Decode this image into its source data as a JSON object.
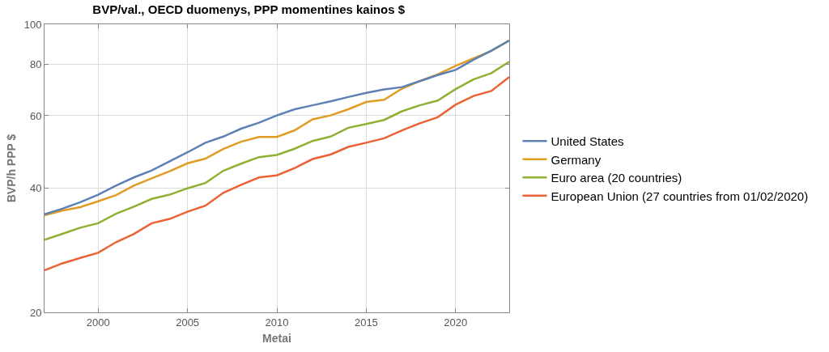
{
  "chart_data": {
    "type": "line",
    "title": "BVP/val., OECD duomenys, PPP momentines kainos $",
    "xlabel": "Metai",
    "ylabel": "BVP/h PPP $",
    "x": [
      1997,
      1998,
      1999,
      2000,
      2001,
      2002,
      2003,
      2004,
      2005,
      2006,
      2007,
      2008,
      2009,
      2010,
      2011,
      2012,
      2013,
      2014,
      2015,
      2016,
      2017,
      2018,
      2019,
      2020,
      2021,
      2022,
      2023
    ],
    "series": [
      {
        "name": "United States",
        "color": "#5e81b5",
        "values": [
          34.6,
          35.7,
          37.0,
          38.6,
          40.6,
          42.5,
          44.2,
          46.5,
          48.9,
          51.6,
          53.4,
          55.8,
          57.7,
          60.1,
          62.2,
          63.6,
          65.0,
          66.6,
          68.2,
          69.5,
          70.4,
          72.8,
          75.3,
          77.5,
          82.0,
          86.3,
          91.3
        ]
      },
      {
        "name": "Germany",
        "color": "#e19c24",
        "values": [
          34.4,
          35.3,
          36.0,
          37.2,
          38.5,
          40.6,
          42.3,
          44.0,
          46.0,
          47.2,
          49.8,
          51.9,
          53.3,
          53.3,
          55.3,
          58.8,
          60.1,
          62.2,
          64.8,
          65.6,
          69.8,
          72.8,
          75.6,
          79.3,
          82.6,
          86.2,
          91.3
        ]
      },
      {
        "name": "Euro area (20 countries)",
        "color": "#8fb032",
        "values": [
          30.0,
          31.0,
          32.1,
          32.9,
          34.7,
          36.1,
          37.7,
          38.6,
          40.0,
          41.2,
          44.1,
          45.9,
          47.6,
          48.2,
          49.9,
          52.1,
          53.4,
          56.1,
          57.3,
          58.6,
          61.5,
          63.6,
          65.3,
          69.6,
          73.5,
          76.1,
          81.1
        ]
      },
      {
        "name": "European Union (27 countries from 01/02/2020)",
        "color": "#eb6235",
        "values": [
          25.3,
          26.3,
          27.1,
          27.9,
          29.6,
          31.0,
          32.9,
          33.7,
          35.1,
          36.3,
          39.0,
          40.8,
          42.5,
          43.0,
          44.8,
          47.1,
          48.3,
          50.4,
          51.6,
          52.9,
          55.3,
          57.5,
          59.5,
          63.8,
          67.0,
          68.9,
          74.5
        ]
      }
    ],
    "xlim": [
      1997,
      2023
    ],
    "ylim": [
      20,
      100
    ],
    "xticks": [
      2000,
      2005,
      2010,
      2015,
      2020
    ],
    "yticks": [
      20,
      40,
      60,
      80,
      100
    ],
    "log": true,
    "grid": true,
    "legend": "right",
    "marker": "none",
    "line_style": "solid"
  }
}
